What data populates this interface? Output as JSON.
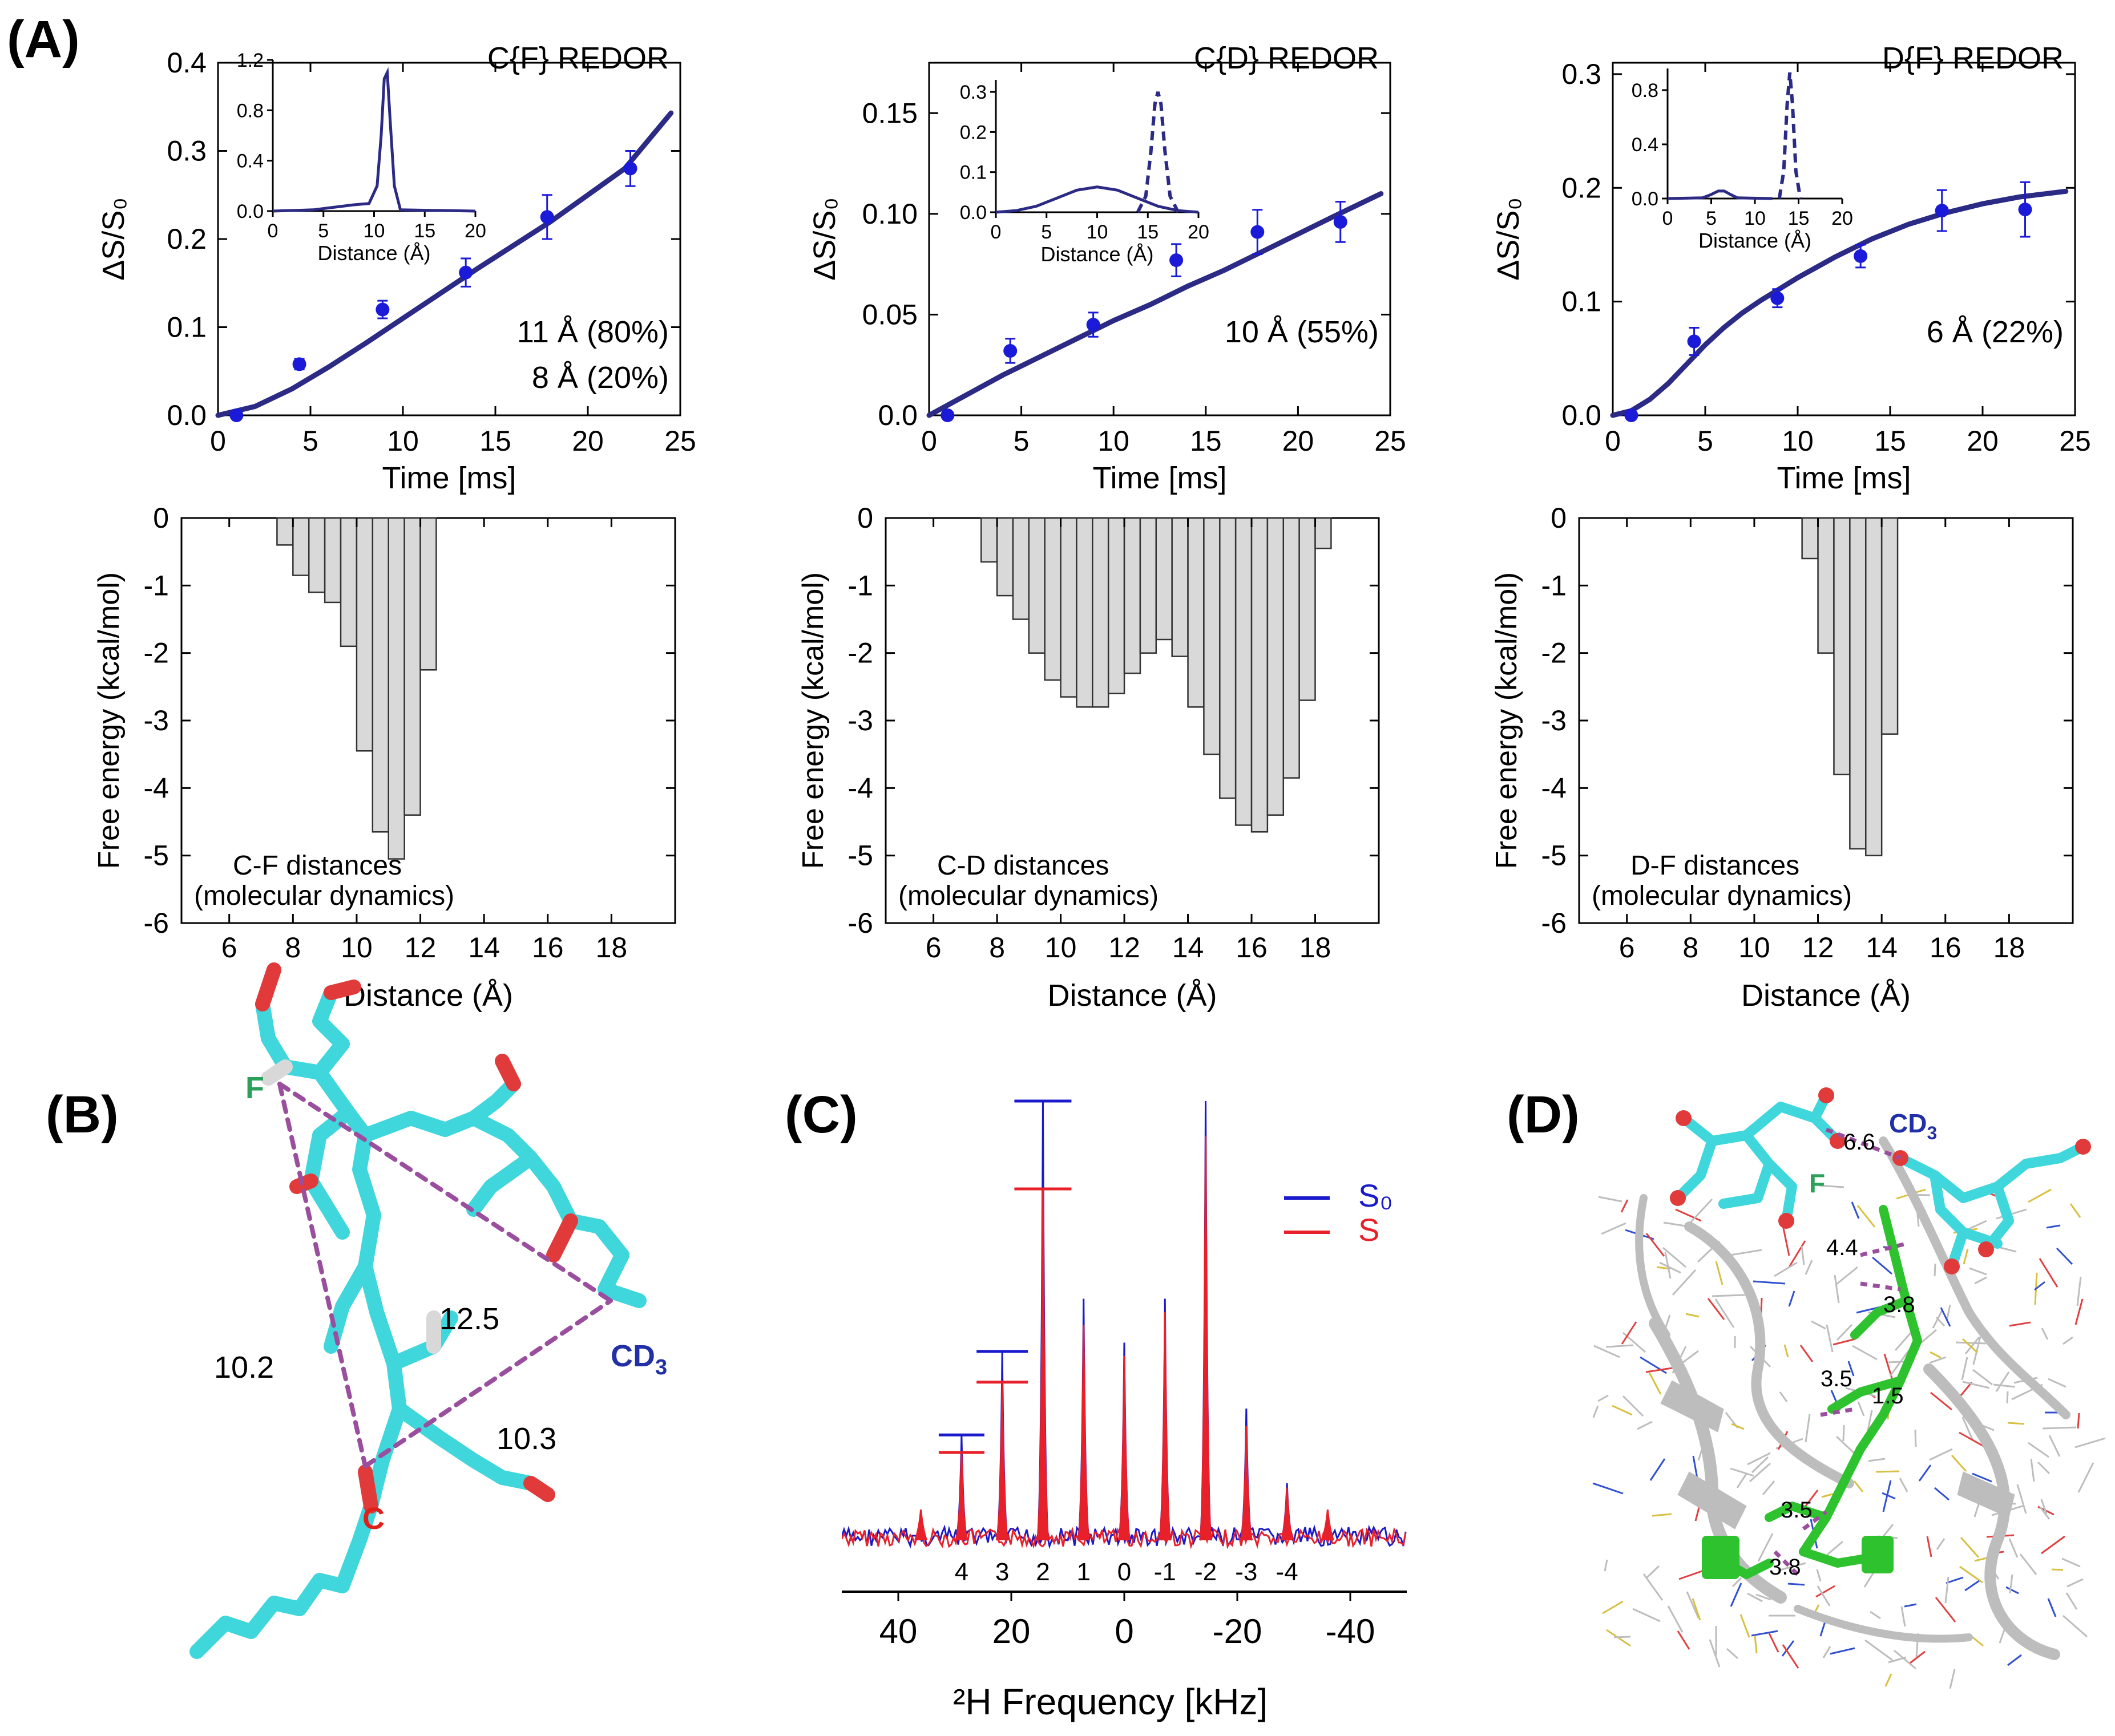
{
  "panel_labels": {
    "a": "(A)",
    "b": "(B)",
    "c": "(C)",
    "d": "(D)"
  },
  "chart_data": [
    {
      "type": "scatter",
      "panel": "A-top-1",
      "title": "C{F} REDOR",
      "xlabel": "Time [ms]",
      "ylabel": "ΔS/S₀",
      "xlim": [
        0,
        25
      ],
      "ylim": [
        0,
        0.4
      ],
      "xticks": [
        0,
        5,
        10,
        15,
        20,
        25
      ],
      "yticks": [
        0.0,
        0.1,
        0.2,
        0.3,
        0.4
      ],
      "ytick_labels": [
        "0.0",
        "0.1",
        "0.2",
        "0.3",
        "0.4"
      ],
      "points": {
        "x": [
          1.0,
          4.4,
          8.9,
          13.4,
          17.8,
          22.3
        ],
        "y": [
          0.0,
          0.058,
          0.12,
          0.162,
          0.225,
          0.28
        ],
        "err": [
          0.0,
          0.006,
          0.01,
          0.016,
          0.025,
          0.02
        ]
      },
      "fit": {
        "x": [
          0,
          2,
          4,
          6,
          8,
          10,
          12,
          14,
          16,
          18,
          20,
          22,
          24.5
        ],
        "y": [
          0.0,
          0.01,
          0.03,
          0.055,
          0.082,
          0.11,
          0.138,
          0.166,
          0.193,
          0.22,
          0.25,
          0.28,
          0.343
        ]
      },
      "annotations": [
        "11 Å (80%)",
        "8 Å  (20%)"
      ],
      "inset": {
        "xlabel": "Distance (Å)",
        "xlim": [
          0,
          20
        ],
        "ylim": [
          0,
          1.2
        ],
        "xticks": [
          0,
          5,
          10,
          15,
          20
        ],
        "yticks": [
          0.0,
          0.4,
          0.8,
          1.2
        ],
        "ytick_labels": [
          "0.0",
          "0.4",
          "0.8",
          "1.2"
        ],
        "solid": {
          "x": [
            0,
            4,
            6,
            8,
            9.5,
            10.3,
            10.7,
            11.0,
            11.3,
            11.6,
            12.0,
            12.6,
            20
          ],
          "y": [
            0,
            0.01,
            0.03,
            0.05,
            0.06,
            0.2,
            0.6,
            1.05,
            1.1,
            0.7,
            0.2,
            0.01,
            0
          ]
        },
        "dashed": null
      }
    },
    {
      "type": "scatter",
      "panel": "A-top-2",
      "title": "C{D} REDOR",
      "xlabel": "Time [ms]",
      "ylabel": "ΔS/S₀",
      "xlim": [
        0,
        25
      ],
      "ylim": [
        0,
        0.175
      ],
      "xticks": [
        0,
        5,
        10,
        15,
        20,
        25
      ],
      "yticks": [
        0.0,
        0.05,
        0.1,
        0.15
      ],
      "ytick_labels": [
        "0.0",
        "0.05",
        "0.10",
        "0.15"
      ],
      "points": {
        "x": [
          1.0,
          4.4,
          8.9,
          13.4,
          17.8,
          22.3
        ],
        "y": [
          0.0,
          0.032,
          0.045,
          0.077,
          0.091,
          0.096
        ],
        "err": [
          0.0,
          0.006,
          0.006,
          0.008,
          0.011,
          0.01
        ]
      },
      "fit": {
        "x": [
          0,
          2,
          4,
          6,
          8,
          10,
          12,
          14,
          16,
          18,
          20,
          22,
          24.5
        ],
        "y": [
          0.0,
          0.01,
          0.02,
          0.029,
          0.038,
          0.047,
          0.055,
          0.064,
          0.072,
          0.081,
          0.09,
          0.099,
          0.11
        ]
      },
      "annotations": [
        "10 Å (55%)"
      ],
      "inset": {
        "xlabel": "Distance (Å)",
        "xlim": [
          0,
          20
        ],
        "ylim": [
          0,
          0.33
        ],
        "xticks": [
          0,
          5,
          10,
          15,
          20
        ],
        "yticks": [
          0.0,
          0.1,
          0.2,
          0.3
        ],
        "ytick_labels": [
          "0.0",
          "0.1",
          "0.2",
          "0.3"
        ],
        "solid": {
          "x": [
            0,
            2,
            4,
            6,
            8,
            10,
            12,
            14,
            16,
            18,
            20
          ],
          "y": [
            0,
            0.004,
            0.015,
            0.035,
            0.055,
            0.063,
            0.055,
            0.035,
            0.015,
            0.004,
            0
          ]
        },
        "dashed": {
          "x": [
            14,
            14.8,
            15.3,
            15.7,
            16.0,
            16.3,
            16.7,
            17.2,
            18
          ],
          "y": [
            0,
            0.04,
            0.15,
            0.27,
            0.3,
            0.27,
            0.15,
            0.04,
            0
          ]
        }
      }
    },
    {
      "type": "scatter",
      "panel": "A-top-3",
      "title": "D{F} REDOR",
      "xlabel": "Time [ms]",
      "ylabel": "ΔS/S₀",
      "xlim": [
        0,
        25
      ],
      "ylim": [
        0,
        0.31
      ],
      "xticks": [
        0,
        5,
        10,
        15,
        20,
        25
      ],
      "yticks": [
        0.0,
        0.1,
        0.2,
        0.3
      ],
      "ytick_labels": [
        "0.0",
        "0.1",
        "0.2",
        "0.3"
      ],
      "points": {
        "x": [
          1.0,
          4.4,
          8.9,
          13.4,
          17.8,
          22.3
        ],
        "y": [
          0.0,
          0.065,
          0.103,
          0.14,
          0.18,
          0.181
        ],
        "err": [
          0.0,
          0.012,
          0.008,
          0.01,
          0.018,
          0.024
        ]
      },
      "fit": {
        "x": [
          0,
          1,
          2,
          3,
          4,
          5,
          6,
          7,
          8,
          10,
          12,
          14,
          16,
          18,
          20,
          22,
          24.5
        ],
        "y": [
          0.0,
          0.004,
          0.014,
          0.028,
          0.045,
          0.062,
          0.077,
          0.09,
          0.101,
          0.121,
          0.139,
          0.155,
          0.168,
          0.178,
          0.186,
          0.192,
          0.197
        ]
      },
      "annotations": [
        "6 Å (22%)"
      ],
      "inset": {
        "xlabel": "Distance (Å)",
        "xlim": [
          0,
          20
        ],
        "ylim": [
          0,
          0.96
        ],
        "xticks": [
          0,
          5,
          10,
          15,
          20
        ],
        "yticks": [
          0.0,
          0.4,
          0.8
        ],
        "ytick_labels": [
          "0.0",
          "0.4",
          "0.8"
        ],
        "solid": {
          "x": [
            0,
            4,
            5,
            5.8,
            6.5,
            7.2,
            8,
            12
          ],
          "y": [
            0,
            0.005,
            0.03,
            0.055,
            0.055,
            0.03,
            0.005,
            0
          ]
        },
        "dashed": {
          "x": [
            12.8,
            13.3,
            13.7,
            14.0,
            14.3,
            14.7,
            15.2
          ],
          "y": [
            0,
            0.2,
            0.7,
            0.93,
            0.7,
            0.2,
            0
          ]
        }
      }
    },
    {
      "type": "bar",
      "panel": "A-bottom-1",
      "xlabel": "Distance (Å)",
      "ylabel": "Free energy (kcal/mol)",
      "xlim": [
        4.5,
        20
      ],
      "ylim": [
        -6,
        0
      ],
      "xticks": [
        6,
        8,
        10,
        12,
        14,
        16,
        18
      ],
      "yticks": [
        0,
        -1,
        -2,
        -3,
        -4,
        -5,
        -6
      ],
      "bar_width": 0.5,
      "x": [
        7.75,
        8.25,
        8.75,
        9.25,
        9.75,
        10.25,
        10.75,
        11.25,
        11.75,
        12.25
      ],
      "values": [
        -0.4,
        -0.85,
        -1.1,
        -1.25,
        -1.9,
        -3.45,
        -4.65,
        -5.05,
        -4.4,
        -2.25
      ],
      "annotations": [
        "C-F distances",
        "(molecular dynamics)"
      ]
    },
    {
      "type": "bar",
      "panel": "A-bottom-2",
      "xlabel": "Distance (Å)",
      "ylabel": "Free energy (kcal/mol)",
      "xlim": [
        4.5,
        20
      ],
      "ylim": [
        -6,
        0
      ],
      "xticks": [
        6,
        8,
        10,
        12,
        14,
        16,
        18
      ],
      "yticks": [
        0,
        -1,
        -2,
        -3,
        -4,
        -5,
        -6
      ],
      "bar_width": 0.5,
      "x": [
        7.75,
        8.25,
        8.75,
        9.25,
        9.75,
        10.25,
        10.75,
        11.25,
        11.75,
        12.25,
        12.75,
        13.25,
        13.75,
        14.25,
        14.75,
        15.25,
        15.75,
        16.25,
        16.75,
        17.25,
        17.75,
        18.25
      ],
      "values": [
        -0.65,
        -1.15,
        -1.5,
        -2.0,
        -2.4,
        -2.65,
        -2.8,
        -2.8,
        -2.6,
        -2.3,
        -2.0,
        -1.8,
        -2.05,
        -2.8,
        -3.5,
        -4.15,
        -4.55,
        -4.65,
        -4.4,
        -3.85,
        -2.7,
        -0.45
      ],
      "annotations": [
        "C-D distances",
        "(molecular dynamics)"
      ]
    },
    {
      "type": "bar",
      "panel": "A-bottom-3",
      "xlabel": "Distance (Å)",
      "ylabel": "Free energy (kcal/mol)",
      "xlim": [
        4.5,
        20
      ],
      "ylim": [
        -6,
        0
      ],
      "xticks": [
        6,
        8,
        10,
        12,
        14,
        16,
        18
      ],
      "yticks": [
        0,
        -1,
        -2,
        -3,
        -4,
        -5,
        -6
      ],
      "bar_width": 0.5,
      "x": [
        11.75,
        12.25,
        12.75,
        13.25,
        13.75,
        14.25
      ],
      "values": [
        -0.6,
        -2.0,
        -3.8,
        -4.9,
        -5.0,
        -3.2
      ],
      "annotations": [
        "D-F distances",
        "(molecular dynamics)"
      ]
    },
    {
      "type": "line",
      "panel": "C",
      "xlabel": "²H Frequency [kHz]",
      "xlim": [
        50,
        -50
      ],
      "xticks": [
        40,
        20,
        0,
        -20,
        -40
      ],
      "legend": [
        "S₀",
        "S"
      ],
      "legend_position": "top-right",
      "sideband_labels": [
        "4",
        "3",
        "2",
        "1",
        "0",
        "-1",
        "-2",
        "-3",
        "-4"
      ],
      "sideband_freq": [
        28.8,
        21.6,
        14.4,
        7.2,
        0,
        -7.2,
        -14.4,
        -21.6,
        -28.8
      ],
      "S0_heights": [
        0.24,
        0.43,
        1.0,
        0.55,
        0.45,
        0.55,
        1.0,
        0.3,
        0.13
      ],
      "S_heights": [
        0.2,
        0.36,
        0.8,
        0.49,
        0.42,
        0.52,
        0.92,
        0.26,
        0.12
      ],
      "extra_peaks_freq": [
        36,
        -36
      ],
      "extra_peaks_heights": [
        0.07,
        0.07
      ]
    }
  ],
  "structure_b": {
    "labels": {
      "f": "F",
      "cd3": "CD",
      "cd3_sub": "3",
      "c": "C"
    },
    "distances": {
      "fc": "10.2",
      "fcd3": "12.5",
      "ccd3": "10.3"
    },
    "colors": {
      "molecule": "#3fd6dc",
      "oxygen": "#e03a3a",
      "hydrogen": "#d8d8d8",
      "dashed": "#9a4e9e",
      "f_label": "#2aa05a",
      "cd3_label": "#2230a8",
      "c_label": "#e0201a"
    }
  },
  "structure_d": {
    "labels": {
      "f": "F",
      "cd3": "CD",
      "cd3_sub": "3"
    },
    "distances": [
      "6.6",
      "4.4",
      "3.8",
      "3.5",
      "1.5",
      "3.5",
      "3.8"
    ],
    "colors": {
      "ligand": "#3fd6dc",
      "peptide": "#2fc22f",
      "protein": "#bdbdbd"
    }
  },
  "colors": {
    "fit": "#2b2a85",
    "points": "#1a1ad8",
    "bars": "#d9d9d9",
    "s0": "#1a1acc",
    "s": "#e8202a"
  }
}
